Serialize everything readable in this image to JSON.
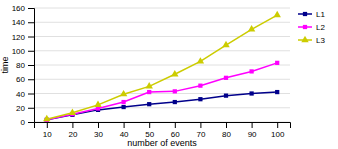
{
  "chart_data": {
    "type": "line",
    "xlabel": "number of events",
    "ylabel": "time",
    "x": [
      10,
      20,
      30,
      40,
      50,
      60,
      70,
      80,
      90,
      100
    ],
    "series": [
      {
        "name": "L1",
        "color": "#00008B",
        "marker": "square",
        "values": [
          3,
          10,
          17,
          21,
          25,
          28,
          32,
          37,
          40,
          42
        ]
      },
      {
        "name": "L2",
        "color": "#FF00FF",
        "marker": "square",
        "values": [
          3,
          11,
          19,
          28,
          42,
          43,
          51,
          62,
          71,
          83
        ]
      },
      {
        "name": "L3",
        "color": "#CCCC00",
        "marker": "triangle",
        "values": [
          4,
          13,
          24,
          39,
          50,
          67,
          85,
          108,
          130,
          150
        ]
      }
    ],
    "xlim": [
      5,
      105
    ],
    "ylim": [
      0,
      160
    ],
    "xticks": [
      10,
      20,
      30,
      40,
      50,
      60,
      70,
      80,
      90,
      100
    ],
    "yticks": [
      0,
      20,
      40,
      60,
      80,
      100,
      120,
      140,
      160
    ],
    "grid": "y",
    "legend": "right"
  }
}
